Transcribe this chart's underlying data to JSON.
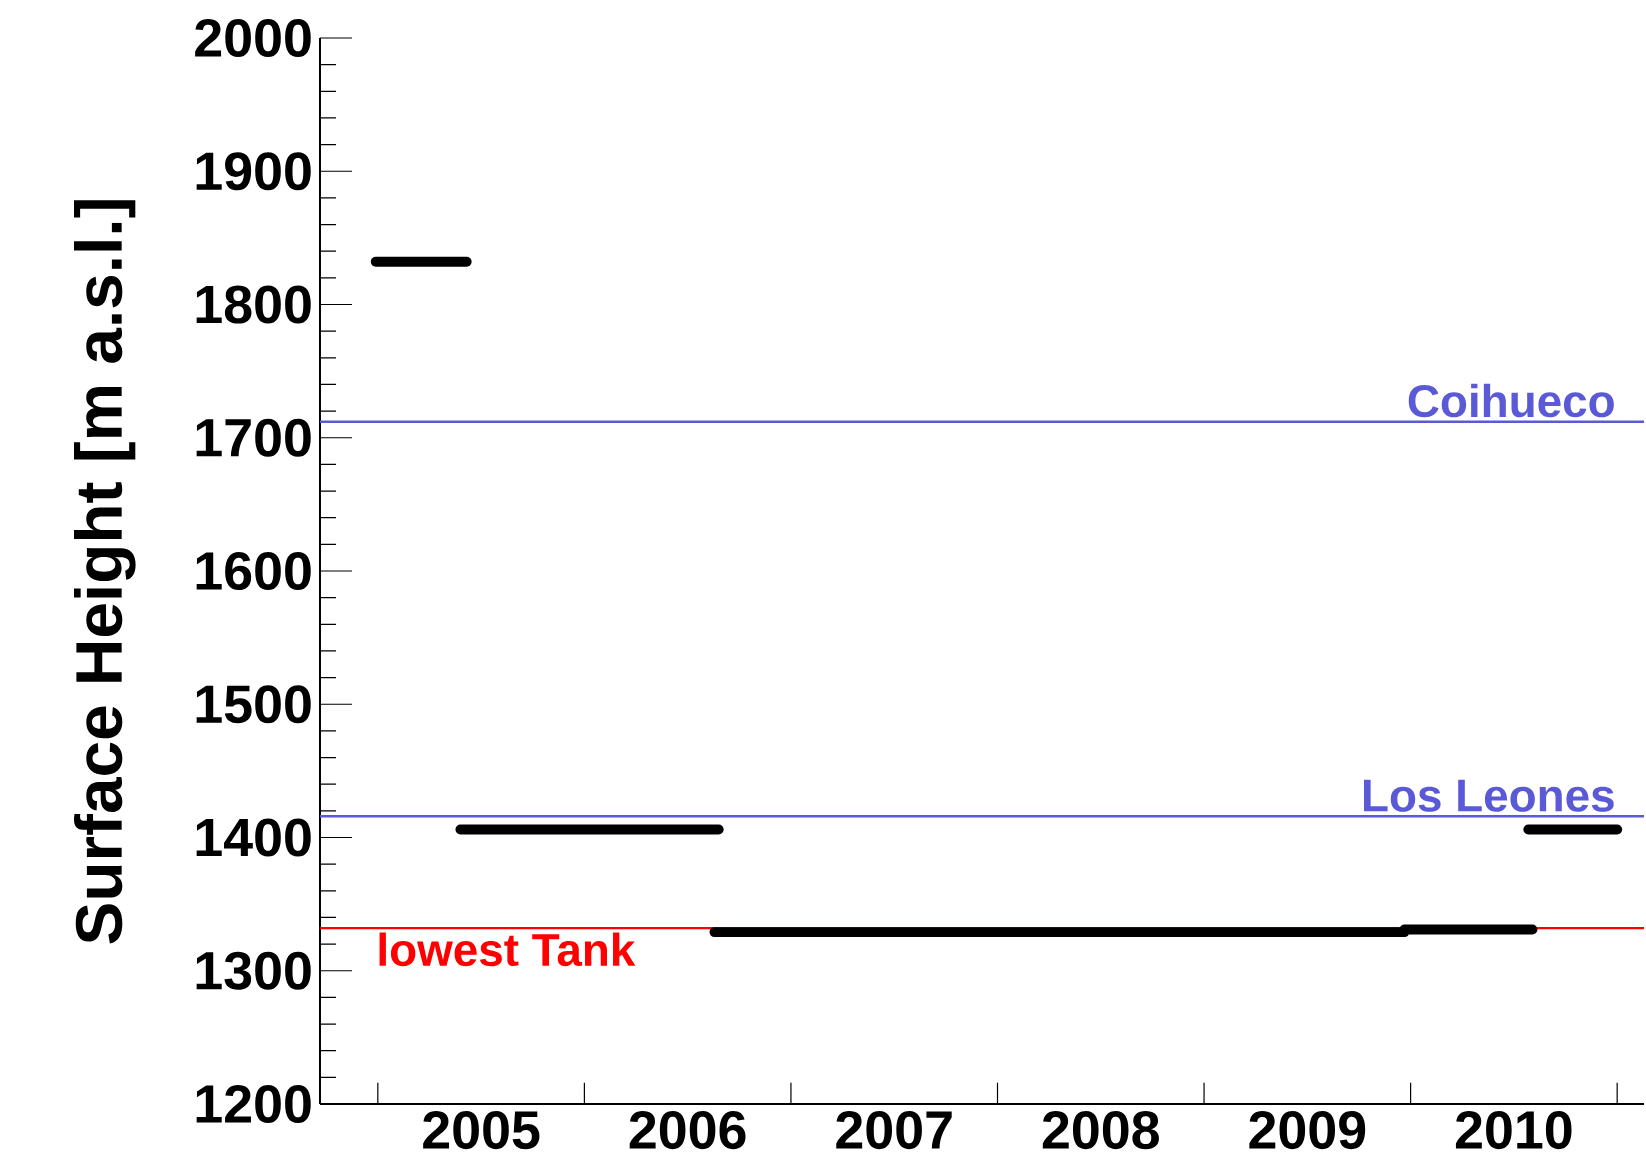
{
  "chart_data": {
    "type": "line",
    "ylabel": "Surface Height [m a.s.l.]",
    "series": [
      {
        "color": "#000000",
        "x": [
          2004.99,
          2005.43
        ],
        "values": [
          1832,
          1832
        ]
      },
      {
        "color": "#000000",
        "x": [
          2005.4,
          2006.65
        ],
        "values": [
          1406,
          1406
        ]
      },
      {
        "color": "#000000",
        "x": [
          2006.63,
          2009.97,
          2009.97,
          2010.59
        ],
        "values": [
          1329,
          1329,
          1331,
          1331
        ]
      },
      {
        "color": "#000000",
        "x": [
          2010.57,
          2011.0
        ],
        "values": [
          1406,
          1406
        ]
      }
    ],
    "xlim": [
      2004.72,
      2011.13
    ],
    "xticks": [
      {
        "value": 2005,
        "label": null
      },
      {
        "value": 2005.5,
        "label": "2005"
      },
      {
        "value": 2006,
        "label": null
      },
      {
        "value": 2006.5,
        "label": "2006"
      },
      {
        "value": 2007,
        "label": null
      },
      {
        "value": 2007.5,
        "label": "2007"
      },
      {
        "value": 2008,
        "label": null
      },
      {
        "value": 2008.5,
        "label": "2008"
      },
      {
        "value": 2009,
        "label": null
      },
      {
        "value": 2009.5,
        "label": "2009"
      },
      {
        "value": 2010,
        "label": null
      },
      {
        "value": 2010.5,
        "label": "2010"
      },
      {
        "value": 2011,
        "label": null
      }
    ],
    "ylim": [
      1200,
      2000
    ],
    "yticks": [
      1200,
      1300,
      1400,
      1500,
      1600,
      1700,
      1800,
      1900,
      2000
    ],
    "ref_lines": [
      {
        "axis": "y",
        "value": 1712,
        "label": "Coihueco",
        "color": "#5a5ad6"
      },
      {
        "axis": "y",
        "value": 1416,
        "label": "Los Leones",
        "color": "#5a5ad6"
      },
      {
        "axis": "y",
        "value": 1332,
        "label": "lowest Tank",
        "color": "#ff0000"
      }
    ],
    "grid": false,
    "marker": "none",
    "line_style": "solid"
  }
}
